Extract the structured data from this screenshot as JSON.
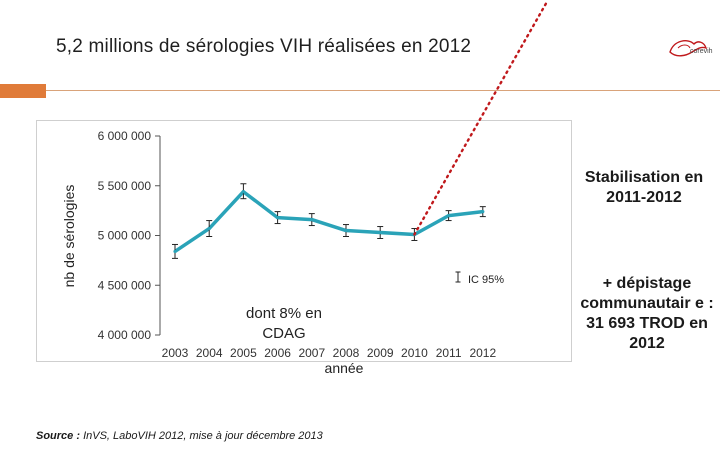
{
  "slide": {
    "title": "5,2 millions de sérologies VIH réalisées en 2012",
    "source_label": "Source :",
    "source_text": "InVS, LaboVIH 2012, mise à jour décembre 2013",
    "logo_text": "corevih",
    "note_stabilisation": "Stabilisation en 2011-2012",
    "note_depistage": "+ dépistage communautair e : 31 693 TROD en 2012"
  },
  "colors": {
    "accent_orange": "#e07b39",
    "line": "#2aa3b8",
    "dotted_red": "#c0191c",
    "axis": "#555555"
  },
  "chart_data": {
    "type": "line",
    "title": "",
    "xlabel": "année",
    "ylabel": "nb de sérologies",
    "categories": [
      "2003",
      "2004",
      "2005",
      "2006",
      "2007",
      "2008",
      "2009",
      "2010",
      "2011",
      "2012"
    ],
    "series": [
      {
        "name": "nb de sérologies",
        "values": [
          4840000,
          5070000,
          5440000,
          5180000,
          5160000,
          5050000,
          5030000,
          5010000,
          5200000,
          5240000
        ],
        "ci_low": [
          4770000,
          4990000,
          5370000,
          5120000,
          5100000,
          4990000,
          4970000,
          4950000,
          5150000,
          5190000
        ],
        "ci_high": [
          4910000,
          5150000,
          5520000,
          5240000,
          5220000,
          5110000,
          5090000,
          5070000,
          5250000,
          5290000
        ]
      }
    ],
    "ylim": [
      4000000,
      6000000
    ],
    "yticks": [
      4000000,
      4500000,
      5000000,
      5500000,
      6000000
    ],
    "ytick_labels": [
      "4 000 000",
      "4 500 000",
      "5 000 000",
      "5 500 000",
      "6 000 000"
    ],
    "legend": {
      "label": "IC 95%",
      "position": "right"
    },
    "annotations": [
      {
        "text": "dont 8% en CDAG"
      }
    ],
    "trend_line": {
      "style": "dotted",
      "from_category": "2010",
      "direction": "up"
    }
  }
}
